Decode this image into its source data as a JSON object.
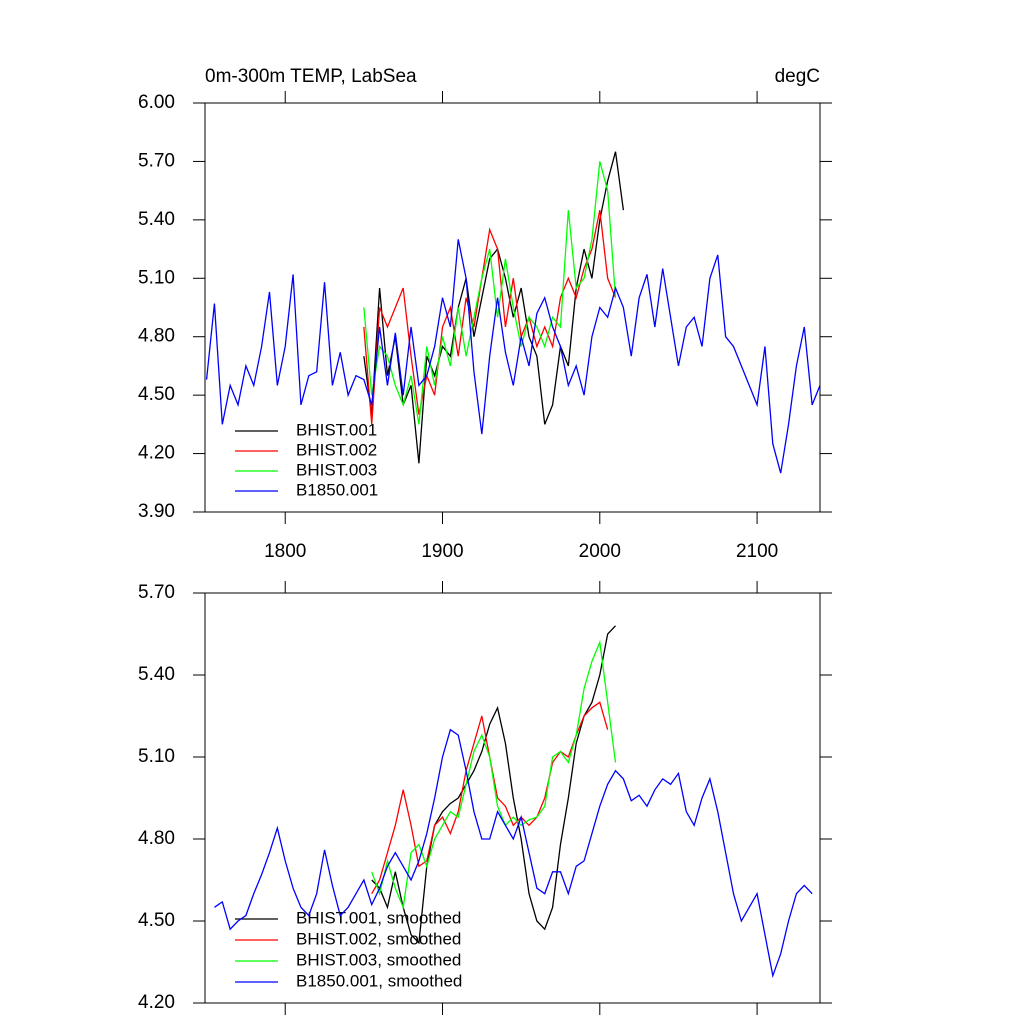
{
  "chart_data": [
    {
      "type": "line",
      "title": "0m-300m TEMP, LabSea",
      "units": "degC",
      "xlim": [
        1749,
        2140
      ],
      "xticks": [
        1800,
        1900,
        2000,
        2100
      ],
      "xtick_labels": true,
      "ylim": [
        3.9,
        6.0
      ],
      "yticks": [
        {
          "value": 3.9,
          "label": "3.90"
        },
        {
          "value": 4.2,
          "label": "4.20"
        },
        {
          "value": 4.5,
          "label": "4.50"
        },
        {
          "value": 4.8,
          "label": "4.80"
        },
        {
          "value": 5.1,
          "label": "5.10"
        },
        {
          "value": 5.4,
          "label": "5.40"
        },
        {
          "value": 5.7,
          "label": "5.70"
        },
        {
          "value": 6.0,
          "label": "6.00"
        }
      ],
      "legend": "lower-left",
      "series": [
        {
          "name": "BHIST.001",
          "color": "#000000",
          "x": [
            1850,
            1855,
            1860,
            1865,
            1870,
            1875,
            1880,
            1885,
            1890,
            1895,
            1900,
            1905,
            1910,
            1915,
            1920,
            1925,
            1930,
            1935,
            1940,
            1945,
            1950,
            1955,
            1960,
            1965,
            1970,
            1975,
            1980,
            1985,
            1990,
            1995,
            2000,
            2005,
            2010,
            2015
          ],
          "values": [
            4.7,
            4.4,
            5.05,
            4.6,
            4.8,
            4.45,
            4.55,
            4.15,
            4.7,
            4.6,
            4.75,
            4.7,
            4.95,
            5.1,
            4.8,
            5.0,
            5.2,
            5.25,
            5.1,
            4.9,
            5.05,
            4.8,
            4.7,
            4.35,
            4.45,
            4.75,
            4.65,
            5.05,
            5.25,
            5.1,
            5.4,
            5.6,
            5.75,
            5.45
          ]
        },
        {
          "name": "BHIST.002",
          "color": "#ff0000",
          "x": [
            1850,
            1855,
            1860,
            1865,
            1870,
            1875,
            1880,
            1885,
            1890,
            1895,
            1900,
            1905,
            1910,
            1915,
            1920,
            1925,
            1930,
            1935,
            1940,
            1945,
            1950,
            1955,
            1960,
            1965,
            1970,
            1975,
            1980,
            1985,
            1990,
            1995,
            2000,
            2005,
            2010
          ],
          "values": [
            4.85,
            4.35,
            4.95,
            4.85,
            4.95,
            5.05,
            4.7,
            4.4,
            4.6,
            4.5,
            4.85,
            4.95,
            4.7,
            5.0,
            4.85,
            5.1,
            5.35,
            5.25,
            4.85,
            5.1,
            4.8,
            4.9,
            4.75,
            4.85,
            4.75,
            5.0,
            5.1,
            5.0,
            5.15,
            5.25,
            5.45,
            5.1,
            5.0
          ]
        },
        {
          "name": "BHIST.003",
          "color": "#00ff00",
          "x": [
            1850,
            1855,
            1860,
            1865,
            1870,
            1875,
            1880,
            1885,
            1890,
            1895,
            1900,
            1905,
            1910,
            1915,
            1920,
            1925,
            1930,
            1935,
            1940,
            1945,
            1950,
            1955,
            1960,
            1965,
            1970,
            1975,
            1980,
            1985,
            1990,
            1995,
            2000,
            2005,
            2010
          ],
          "values": [
            4.95,
            4.5,
            4.75,
            4.7,
            4.55,
            4.45,
            4.6,
            4.35,
            4.75,
            4.55,
            4.8,
            4.65,
            4.95,
            4.7,
            4.9,
            5.1,
            5.25,
            4.9,
            5.2,
            4.95,
            4.75,
            4.9,
            4.85,
            4.75,
            4.9,
            4.85,
            5.45,
            5.05,
            5.1,
            5.3,
            5.7,
            5.55,
            5.0
          ]
        },
        {
          "name": "B1850.001",
          "color": "#0000ff",
          "x": [
            1750,
            1755,
            1760,
            1765,
            1770,
            1775,
            1780,
            1785,
            1790,
            1795,
            1800,
            1805,
            1810,
            1815,
            1820,
            1825,
            1830,
            1835,
            1840,
            1845,
            1850,
            1855,
            1860,
            1865,
            1870,
            1875,
            1880,
            1885,
            1890,
            1895,
            1900,
            1905,
            1910,
            1915,
            1920,
            1925,
            1930,
            1935,
            1940,
            1945,
            1950,
            1955,
            1960,
            1965,
            1970,
            1975,
            1980,
            1985,
            1990,
            1995,
            2000,
            2005,
            2010,
            2015,
            2020,
            2025,
            2030,
            2035,
            2040,
            2045,
            2050,
            2055,
            2060,
            2065,
            2070,
            2075,
            2080,
            2085,
            2090,
            2095,
            2100,
            2105,
            2110,
            2115,
            2120,
            2125,
            2130,
            2135,
            2140
          ],
          "values": [
            4.58,
            4.97,
            4.35,
            4.55,
            4.45,
            4.65,
            4.55,
            4.75,
            5.03,
            4.55,
            4.75,
            5.12,
            4.45,
            4.6,
            4.62,
            5.08,
            4.55,
            4.72,
            4.5,
            4.6,
            4.58,
            4.45,
            4.85,
            4.55,
            4.82,
            4.5,
            4.85,
            4.55,
            4.6,
            4.75,
            5.0,
            4.85,
            5.3,
            5.1,
            4.62,
            4.3,
            4.7,
            5.0,
            4.72,
            4.55,
            4.8,
            4.65,
            4.92,
            5.0,
            4.85,
            4.75,
            4.55,
            4.65,
            4.5,
            4.8,
            4.95,
            4.9,
            5.05,
            4.95,
            4.7,
            5.0,
            5.12,
            4.85,
            5.15,
            4.9,
            4.65,
            4.85,
            4.9,
            4.75,
            5.1,
            5.22,
            4.8,
            4.75,
            4.65,
            4.55,
            4.45,
            4.75,
            4.25,
            4.1,
            4.35,
            4.65,
            4.85,
            4.45,
            4.55
          ]
        }
      ]
    },
    {
      "type": "line",
      "xlim": [
        1749,
        2140
      ],
      "xticks": [
        1800,
        1900,
        2000,
        2100
      ],
      "xtick_labels": false,
      "ylim": [
        4.2,
        5.7
      ],
      "yticks": [
        {
          "value": 4.2,
          "label": "4.20"
        },
        {
          "value": 4.5,
          "label": "4.50"
        },
        {
          "value": 4.8,
          "label": "4.80"
        },
        {
          "value": 5.1,
          "label": "5.10"
        },
        {
          "value": 5.4,
          "label": "5.40"
        },
        {
          "value": 5.7,
          "label": "5.70"
        }
      ],
      "legend": "lower-left",
      "series": [
        {
          "name": "BHIST.001, smoothed",
          "color": "#000000",
          "x": [
            1855,
            1860,
            1865,
            1870,
            1875,
            1880,
            1885,
            1890,
            1895,
            1900,
            1905,
            1910,
            1915,
            1920,
            1925,
            1930,
            1935,
            1940,
            1945,
            1950,
            1955,
            1960,
            1965,
            1970,
            1975,
            1980,
            1985,
            1990,
            1995,
            2000,
            2005,
            2010
          ],
          "values": [
            4.65,
            4.62,
            4.55,
            4.68,
            4.55,
            4.45,
            4.42,
            4.7,
            4.85,
            4.9,
            4.93,
            4.95,
            5.0,
            5.05,
            5.12,
            5.22,
            5.28,
            5.15,
            4.95,
            4.8,
            4.6,
            4.5,
            4.47,
            4.55,
            4.78,
            4.95,
            5.15,
            5.25,
            5.3,
            5.4,
            5.55,
            5.58
          ]
        },
        {
          "name": "BHIST.002, smoothed",
          "color": "#ff0000",
          "x": [
            1855,
            1860,
            1865,
            1870,
            1875,
            1880,
            1885,
            1890,
            1895,
            1900,
            1905,
            1910,
            1915,
            1920,
            1925,
            1930,
            1935,
            1940,
            1945,
            1950,
            1955,
            1960,
            1965,
            1970,
            1975,
            1980,
            1985,
            1990,
            1995,
            2000,
            2005
          ],
          "values": [
            4.6,
            4.65,
            4.75,
            4.85,
            4.98,
            4.85,
            4.7,
            4.72,
            4.85,
            4.88,
            4.82,
            4.9,
            5.05,
            5.15,
            5.25,
            5.1,
            4.95,
            4.92,
            4.85,
            4.88,
            4.85,
            4.88,
            4.95,
            5.08,
            5.12,
            5.1,
            5.18,
            5.25,
            5.28,
            5.3,
            5.2
          ]
        },
        {
          "name": "BHIST.003, smoothed",
          "color": "#00ff00",
          "x": [
            1855,
            1860,
            1865,
            1870,
            1875,
            1880,
            1885,
            1890,
            1895,
            1900,
            1905,
            1910,
            1915,
            1920,
            1925,
            1930,
            1935,
            1940,
            1945,
            1950,
            1955,
            1960,
            1965,
            1970,
            1975,
            1980,
            1985,
            1990,
            1995,
            2000,
            2005,
            2010
          ],
          "values": [
            4.68,
            4.6,
            4.72,
            4.62,
            4.55,
            4.75,
            4.78,
            4.7,
            4.8,
            4.85,
            4.9,
            4.88,
            5.0,
            5.12,
            5.18,
            5.1,
            4.92,
            4.85,
            4.88,
            4.85,
            4.87,
            4.88,
            4.92,
            5.1,
            5.12,
            5.08,
            5.18,
            5.35,
            5.45,
            5.52,
            5.3,
            5.08
          ]
        },
        {
          "name": "B1850.001, smoothed",
          "color": "#0000ff",
          "x": [
            1755,
            1760,
            1765,
            1770,
            1775,
            1780,
            1785,
            1790,
            1795,
            1800,
            1805,
            1810,
            1815,
            1820,
            1825,
            1830,
            1835,
            1840,
            1845,
            1850,
            1855,
            1860,
            1865,
            1870,
            1875,
            1880,
            1885,
            1890,
            1895,
            1900,
            1905,
            1910,
            1915,
            1920,
            1925,
            1930,
            1935,
            1940,
            1945,
            1950,
            1955,
            1960,
            1965,
            1970,
            1975,
            1980,
            1985,
            1990,
            1995,
            2000,
            2005,
            2010,
            2015,
            2020,
            2025,
            2030,
            2035,
            2040,
            2045,
            2050,
            2055,
            2060,
            2065,
            2070,
            2075,
            2080,
            2085,
            2090,
            2095,
            2100,
            2105,
            2110,
            2115,
            2120,
            2125,
            2130,
            2135
          ],
          "values": [
            4.55,
            4.57,
            4.47,
            4.5,
            4.52,
            4.6,
            4.67,
            4.75,
            4.84,
            4.72,
            4.62,
            4.55,
            4.52,
            4.6,
            4.76,
            4.63,
            4.52,
            4.55,
            4.6,
            4.65,
            4.56,
            4.62,
            4.7,
            4.75,
            4.7,
            4.65,
            4.72,
            4.82,
            4.95,
            5.1,
            5.2,
            5.18,
            5.05,
            4.9,
            4.8,
            4.8,
            4.9,
            4.85,
            4.8,
            4.88,
            4.75,
            4.62,
            4.6,
            4.68,
            4.68,
            4.6,
            4.7,
            4.72,
            4.82,
            4.92,
            5.0,
            5.05,
            5.02,
            4.94,
            4.96,
            4.92,
            4.98,
            5.02,
            5.0,
            5.04,
            4.9,
            4.85,
            4.95,
            5.02,
            4.9,
            4.75,
            4.6,
            4.5,
            4.55,
            4.6,
            4.45,
            4.3,
            4.38,
            4.5,
            4.6,
            4.63,
            4.6
          ]
        }
      ]
    }
  ]
}
